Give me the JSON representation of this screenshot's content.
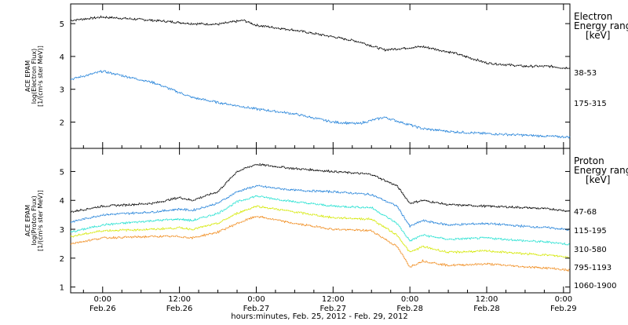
{
  "chart_data": {
    "type": "line",
    "title": "",
    "xlabel": "hours:minutes, Feb. 25, 2012 - Feb. 29, 2012",
    "x_ticks": [
      {
        "time": "0:00",
        "date": "Feb.26"
      },
      {
        "time": "12:00",
        "date": "Feb.26"
      },
      {
        "time": "0:00",
        "date": "Feb.27"
      },
      {
        "time": "12:00",
        "date": "Feb.27"
      },
      {
        "time": "0:00",
        "date": "Feb.28"
      },
      {
        "time": "12:00",
        "date": "Feb.28"
      },
      {
        "time": "0:00",
        "date": "Feb.29"
      }
    ],
    "xlim": [
      "2012-02-25 19:00",
      "2012-02-29 01:00"
    ],
    "panels": [
      {
        "ylabel_lines": [
          "ACE EPAM",
          "log(Electron Flux)",
          "[1/(cm²s ster MeV)]"
        ],
        "ylim": [
          1.2,
          5.6
        ],
        "yticks": [
          2,
          3,
          4,
          5
        ],
        "legend_title": [
          "Electron",
          "Energy range",
          "[keV]"
        ],
        "series": [
          {
            "name": "38-53",
            "color": "#000000",
            "x": [
              -5,
              0,
              8,
              14,
              18,
              22,
              24,
              30,
              36,
              40,
              44,
              50,
              55,
              60,
              66,
              70,
              72,
              76,
              80,
              84,
              88
            ],
            "values": [
              5.1,
              5.2,
              5.1,
              5.0,
              4.98,
              5.1,
              4.95,
              4.8,
              4.6,
              4.45,
              4.2,
              4.3,
              4.1,
              3.8,
              3.7,
              3.7,
              3.65,
              3.7,
              3.75,
              3.6,
              3.2
            ]
          },
          {
            "name": "175-315",
            "color": "#1e7fd8",
            "x": [
              -5,
              0,
              8,
              14,
              18,
              24,
              30,
              36,
              40,
              44,
              50,
              55,
              60,
              66,
              72,
              80,
              88
            ],
            "values": [
              3.3,
              3.55,
              3.2,
              2.75,
              2.6,
              2.4,
              2.25,
              2.0,
              1.95,
              2.15,
              1.8,
              1.7,
              1.65,
              1.6,
              1.55,
              1.55,
              1.5
            ]
          }
        ]
      },
      {
        "ylabel_lines": [
          "ACE EPAM",
          "log(Proton Flux)",
          "[1/(cm²s ster MeV)]"
        ],
        "ylim": [
          0.8,
          5.8
        ],
        "yticks": [
          1,
          2,
          3,
          4,
          5
        ],
        "legend_title": [
          "Proton",
          "Energy range",
          "[keV]"
        ],
        "series": [
          {
            "name": "47-68",
            "color": "#000000",
            "x": [
              -5,
              0,
              8,
              12,
              14,
              18,
              21,
              24,
              30,
              36,
              42,
              46,
              48,
              50,
              54,
              60,
              66,
              70,
              74,
              80,
              84,
              88
            ],
            "values": [
              3.6,
              3.8,
              3.9,
              4.1,
              4.0,
              4.3,
              5.0,
              5.25,
              5.1,
              5.0,
              4.9,
              4.5,
              3.9,
              4.0,
              3.85,
              3.8,
              3.75,
              3.7,
              3.6,
              3.6,
              3.85,
              3.5
            ]
          },
          {
            "name": "115-195",
            "color": "#1e7fd8",
            "x": [
              -5,
              0,
              8,
              12,
              14,
              18,
              21,
              24,
              30,
              36,
              42,
              46,
              48,
              50,
              54,
              60,
              66,
              70,
              74,
              80,
              84,
              88
            ],
            "values": [
              3.25,
              3.5,
              3.6,
              3.7,
              3.65,
              3.9,
              4.3,
              4.5,
              4.35,
              4.3,
              4.2,
              3.8,
              3.1,
              3.3,
              3.15,
              3.2,
              3.1,
              3.05,
              2.95,
              2.95,
              3.1,
              2.6
            ]
          },
          {
            "name": "310-580",
            "color": "#20e0d0",
            "x": [
              -5,
              0,
              8,
              12,
              14,
              18,
              21,
              24,
              30,
              36,
              42,
              46,
              48,
              50,
              54,
              60,
              66,
              70,
              74,
              80,
              84,
              88
            ],
            "values": [
              2.9,
              3.15,
              3.3,
              3.35,
              3.3,
              3.55,
              3.95,
              4.15,
              3.95,
              3.8,
              3.75,
              3.2,
              2.6,
              2.8,
              2.65,
              2.7,
              2.6,
              2.55,
              2.45,
              2.45,
              2.6,
              2.0
            ]
          },
          {
            "name": "795-1193",
            "color": "#d4e800",
            "x": [
              -5,
              0,
              8,
              12,
              14,
              18,
              21,
              24,
              30,
              36,
              42,
              46,
              48,
              50,
              54,
              60,
              66,
              70,
              74,
              80,
              84,
              88
            ],
            "values": [
              2.75,
              2.95,
              3.0,
              3.05,
              3.0,
              3.2,
              3.55,
              3.8,
              3.6,
              3.4,
              3.35,
              2.8,
              2.2,
              2.4,
              2.2,
              2.25,
              2.15,
              2.1,
              2.0,
              2.0,
              2.1,
              1.6
            ]
          },
          {
            "name": "1060-1900",
            "color": "#f08c1e",
            "x": [
              -5,
              0,
              8,
              12,
              14,
              18,
              21,
              24,
              30,
              36,
              42,
              46,
              48,
              50,
              54,
              60,
              66,
              70,
              74,
              80,
              84,
              88
            ],
            "values": [
              2.5,
              2.7,
              2.75,
              2.75,
              2.7,
              2.9,
              3.2,
              3.45,
              3.2,
              3.0,
              2.95,
              2.4,
              1.7,
              1.9,
              1.75,
              1.8,
              1.7,
              1.65,
              1.55,
              1.5,
              1.6,
              1.1
            ]
          }
        ]
      }
    ]
  }
}
